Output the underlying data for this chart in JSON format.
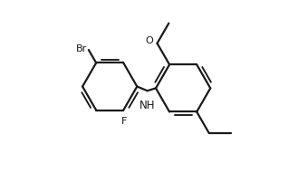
{
  "bg_color": "#ffffff",
  "line_color": "#1a1a1a",
  "lw": 1.6,
  "fs": 8.0,
  "r1cx": 0.27,
  "r1cy": 0.5,
  "r2cx": 0.7,
  "r2cy": 0.49,
  "ring_r": 0.16,
  "Br": "Br",
  "F": "F",
  "O": "O",
  "NH": "NH",
  "methoxy_line_dir": 60,
  "methyl_line_dir": 0
}
